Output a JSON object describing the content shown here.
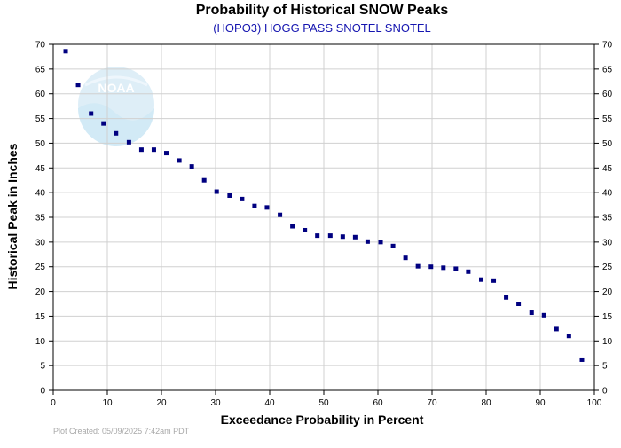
{
  "chart_data": {
    "type": "scatter",
    "title": "Probability of Historical SNOW Peaks",
    "subtitle": "(HOPO3) HOGG PASS SNOTEL SNOTEL",
    "xlabel": "Exceedance Probability in Percent",
    "ylabel": "Historical Peak in Inches",
    "xlim": [
      0,
      100
    ],
    "ylim": [
      0,
      70
    ],
    "xticks": [
      0,
      10,
      20,
      30,
      40,
      50,
      60,
      70,
      80,
      90,
      100
    ],
    "yticks": [
      0,
      5,
      10,
      15,
      20,
      25,
      30,
      35,
      40,
      45,
      50,
      55,
      60,
      65,
      70
    ],
    "grid": true,
    "marker_color": "#000080",
    "series": [
      {
        "x": [
          2.3,
          4.6,
          7.0,
          9.3,
          11.6,
          14.0,
          16.3,
          18.6,
          20.9,
          23.3,
          25.6,
          27.9,
          30.2,
          32.6,
          34.9,
          37.2,
          39.5,
          41.9,
          44.2,
          46.5,
          48.8,
          51.2,
          53.5,
          55.8,
          58.1,
          60.5,
          62.8,
          65.1,
          67.4,
          69.8,
          72.1,
          74.4,
          76.7,
          79.1,
          81.4,
          83.7,
          86.0,
          88.4,
          90.7,
          93.0,
          95.3,
          97.7
        ],
        "y": [
          68.6,
          61.8,
          56.0,
          54.0,
          52.0,
          50.2,
          48.7,
          48.7,
          48.0,
          46.5,
          45.3,
          42.5,
          40.2,
          39.4,
          38.7,
          37.3,
          37.0,
          35.5,
          33.2,
          32.4,
          31.3,
          31.3,
          31.1,
          31.0,
          30.1,
          30.0,
          29.2,
          26.8,
          25.1,
          25.0,
          24.8,
          24.6,
          24.0,
          22.4,
          22.2,
          18.8,
          17.5,
          15.7,
          15.2,
          12.4,
          11.0,
          6.2
        ]
      }
    ]
  },
  "watermark_text": "NOAA",
  "footer": "Plot Created: 05/09/2025 7:42am PDT"
}
